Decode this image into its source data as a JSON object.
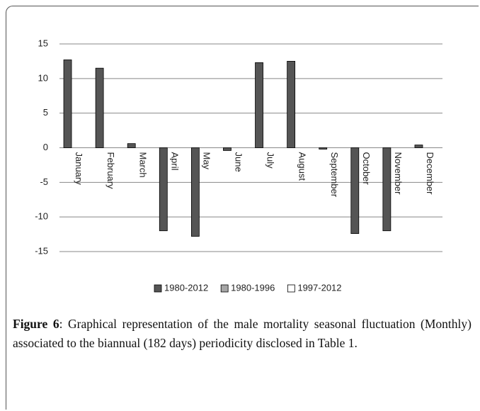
{
  "chart_data": {
    "type": "bar",
    "categories": [
      "January",
      "February",
      "March",
      "April",
      "May",
      "June",
      "July",
      "August",
      "September",
      "October",
      "November",
      "December"
    ],
    "series": [
      {
        "name": "1980-2012",
        "color": "#555555",
        "values": [
          12.7,
          11.5,
          0.6,
          -12,
          -12.8,
          -0.4,
          12.3,
          12.5,
          -0.2,
          -12.4,
          -12,
          0.4
        ]
      },
      {
        "name": "1980-1996",
        "color": "#a6a6a6",
        "values": [
          null,
          null,
          null,
          null,
          null,
          null,
          null,
          null,
          null,
          null,
          null,
          null
        ]
      },
      {
        "name": "1997-2012",
        "color": "#ffffff",
        "values": [
          null,
          null,
          null,
          null,
          null,
          null,
          null,
          null,
          null,
          null,
          null,
          null
        ]
      }
    ],
    "ylim": [
      -15,
      15
    ],
    "yticks": [
      -15,
      -10,
      -5,
      0,
      5,
      10,
      15
    ],
    "grid": true,
    "legend": "bottom"
  },
  "caption": {
    "label": "Figure 6",
    "text": ": Graphical representation of the male mortality seasonal fluctuation (Monthly) associated to the biannual (182 days) periodicity disclosed in Table 1."
  }
}
